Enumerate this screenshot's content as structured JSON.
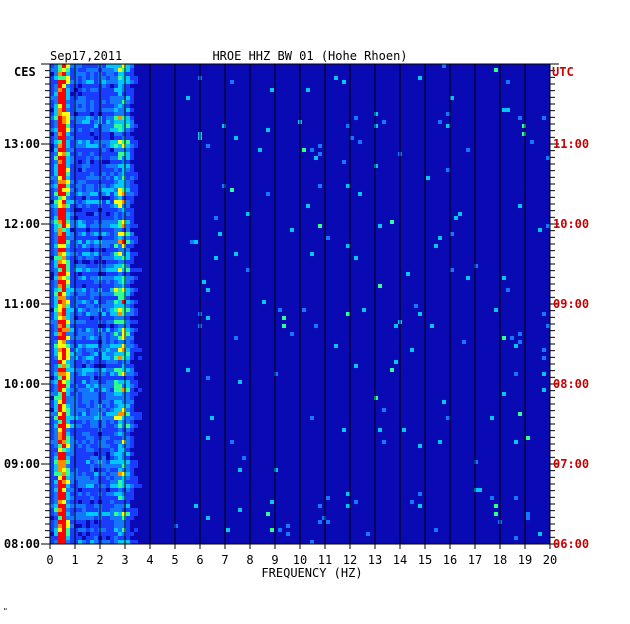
{
  "header": {
    "date": "Sep17,2011",
    "station": "HROE HHZ BW 01 (Hohe Rhoen)"
  },
  "chart_data": {
    "type": "heatmap",
    "title": "HROE HHZ BW 01 (Hohe Rhoen)",
    "date": "Sep17,2011",
    "xlabel": "FREQUENCY (HZ)",
    "xlim": [
      0,
      20
    ],
    "x_ticks": [
      "0",
      "1",
      "2",
      "3",
      "4",
      "5",
      "6",
      "7",
      "8",
      "9",
      "10",
      "11",
      "12",
      "13",
      "14",
      "15",
      "16",
      "17",
      "18",
      "19",
      "20"
    ],
    "left_axis": {
      "label": "CES",
      "ticks": [
        "08:00",
        "09:00",
        "10:00",
        "11:00",
        "12:00",
        "13:00"
      ],
      "hours": [
        8,
        9,
        10,
        11,
        12,
        13
      ],
      "range_hours": [
        8,
        14
      ]
    },
    "right_axis": {
      "label": "UTC",
      "ticks": [
        "06:00",
        "07:00",
        "08:00",
        "09:00",
        "10:00",
        "11:00"
      ],
      "hours": [
        6,
        7,
        8,
        9,
        10,
        11
      ],
      "range_hours": [
        6,
        12
      ]
    },
    "band_peaks_hz": [
      0.5,
      2.9
    ],
    "colors": {
      "background": "#0a0ab4",
      "low": "#1a3cff",
      "mid": "#00c8ff",
      "high": "#ffff00",
      "max": "#ff0000",
      "left_axis_text": "#000000",
      "right_axis_text": "#cc0000"
    }
  },
  "footer": {
    "mark": "\""
  }
}
